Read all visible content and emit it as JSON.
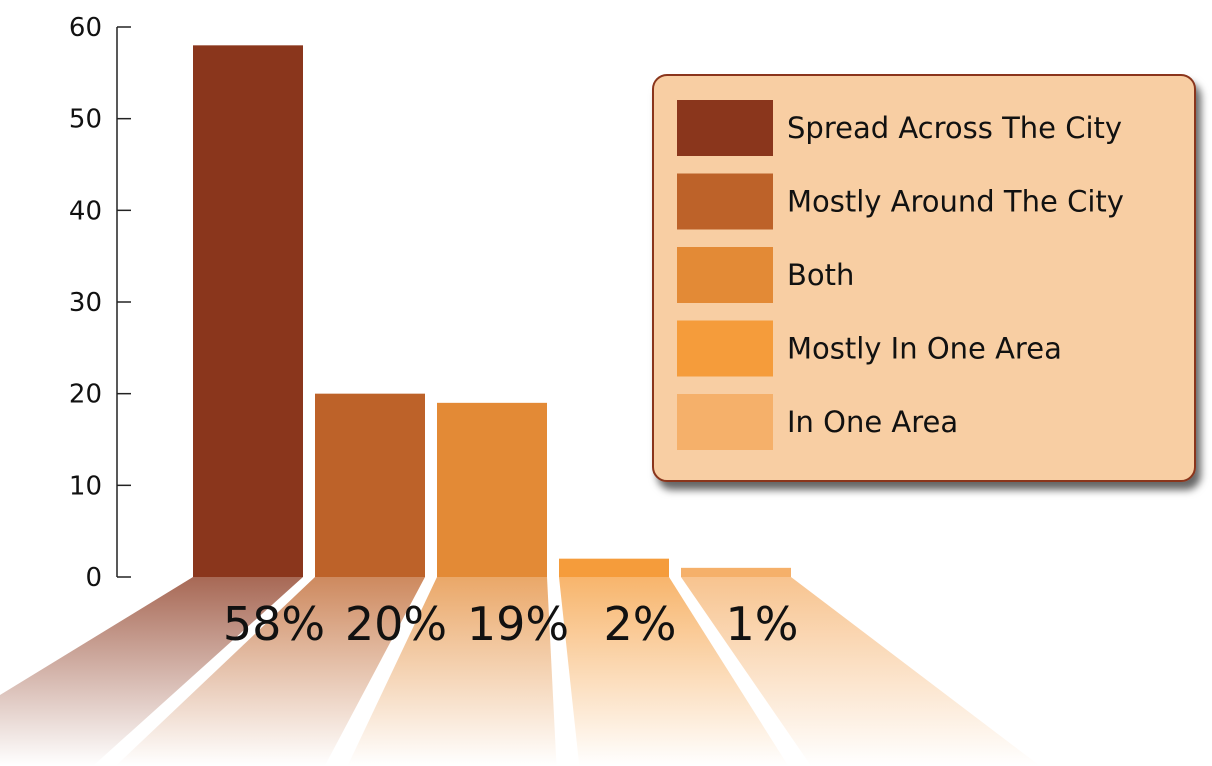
{
  "chart_data": {
    "type": "bar",
    "categories": [
      "Spread Across The City",
      "Mostly Around The City",
      "Both",
      "Mostly In One Area",
      "In One Area"
    ],
    "values": [
      58,
      20,
      19,
      2,
      1
    ],
    "value_labels": [
      "58%",
      "20%",
      "19%",
      "2%",
      "1%"
    ],
    "colors": [
      "#8a361c",
      "#bd6229",
      "#e38a36",
      "#f59c3b",
      "#f5b06a"
    ],
    "ylim": [
      0,
      60
    ],
    "yticks": [
      0,
      10,
      20,
      30,
      40,
      50,
      60
    ],
    "legend": {
      "placement": "top-right",
      "background": "#f8ceA3",
      "border": "#8a361c",
      "entries": [
        "Spread Across The City",
        "Mostly Around The City",
        "Both",
        "Mostly In One Area",
        "In One Area"
      ]
    },
    "grid": false
  }
}
